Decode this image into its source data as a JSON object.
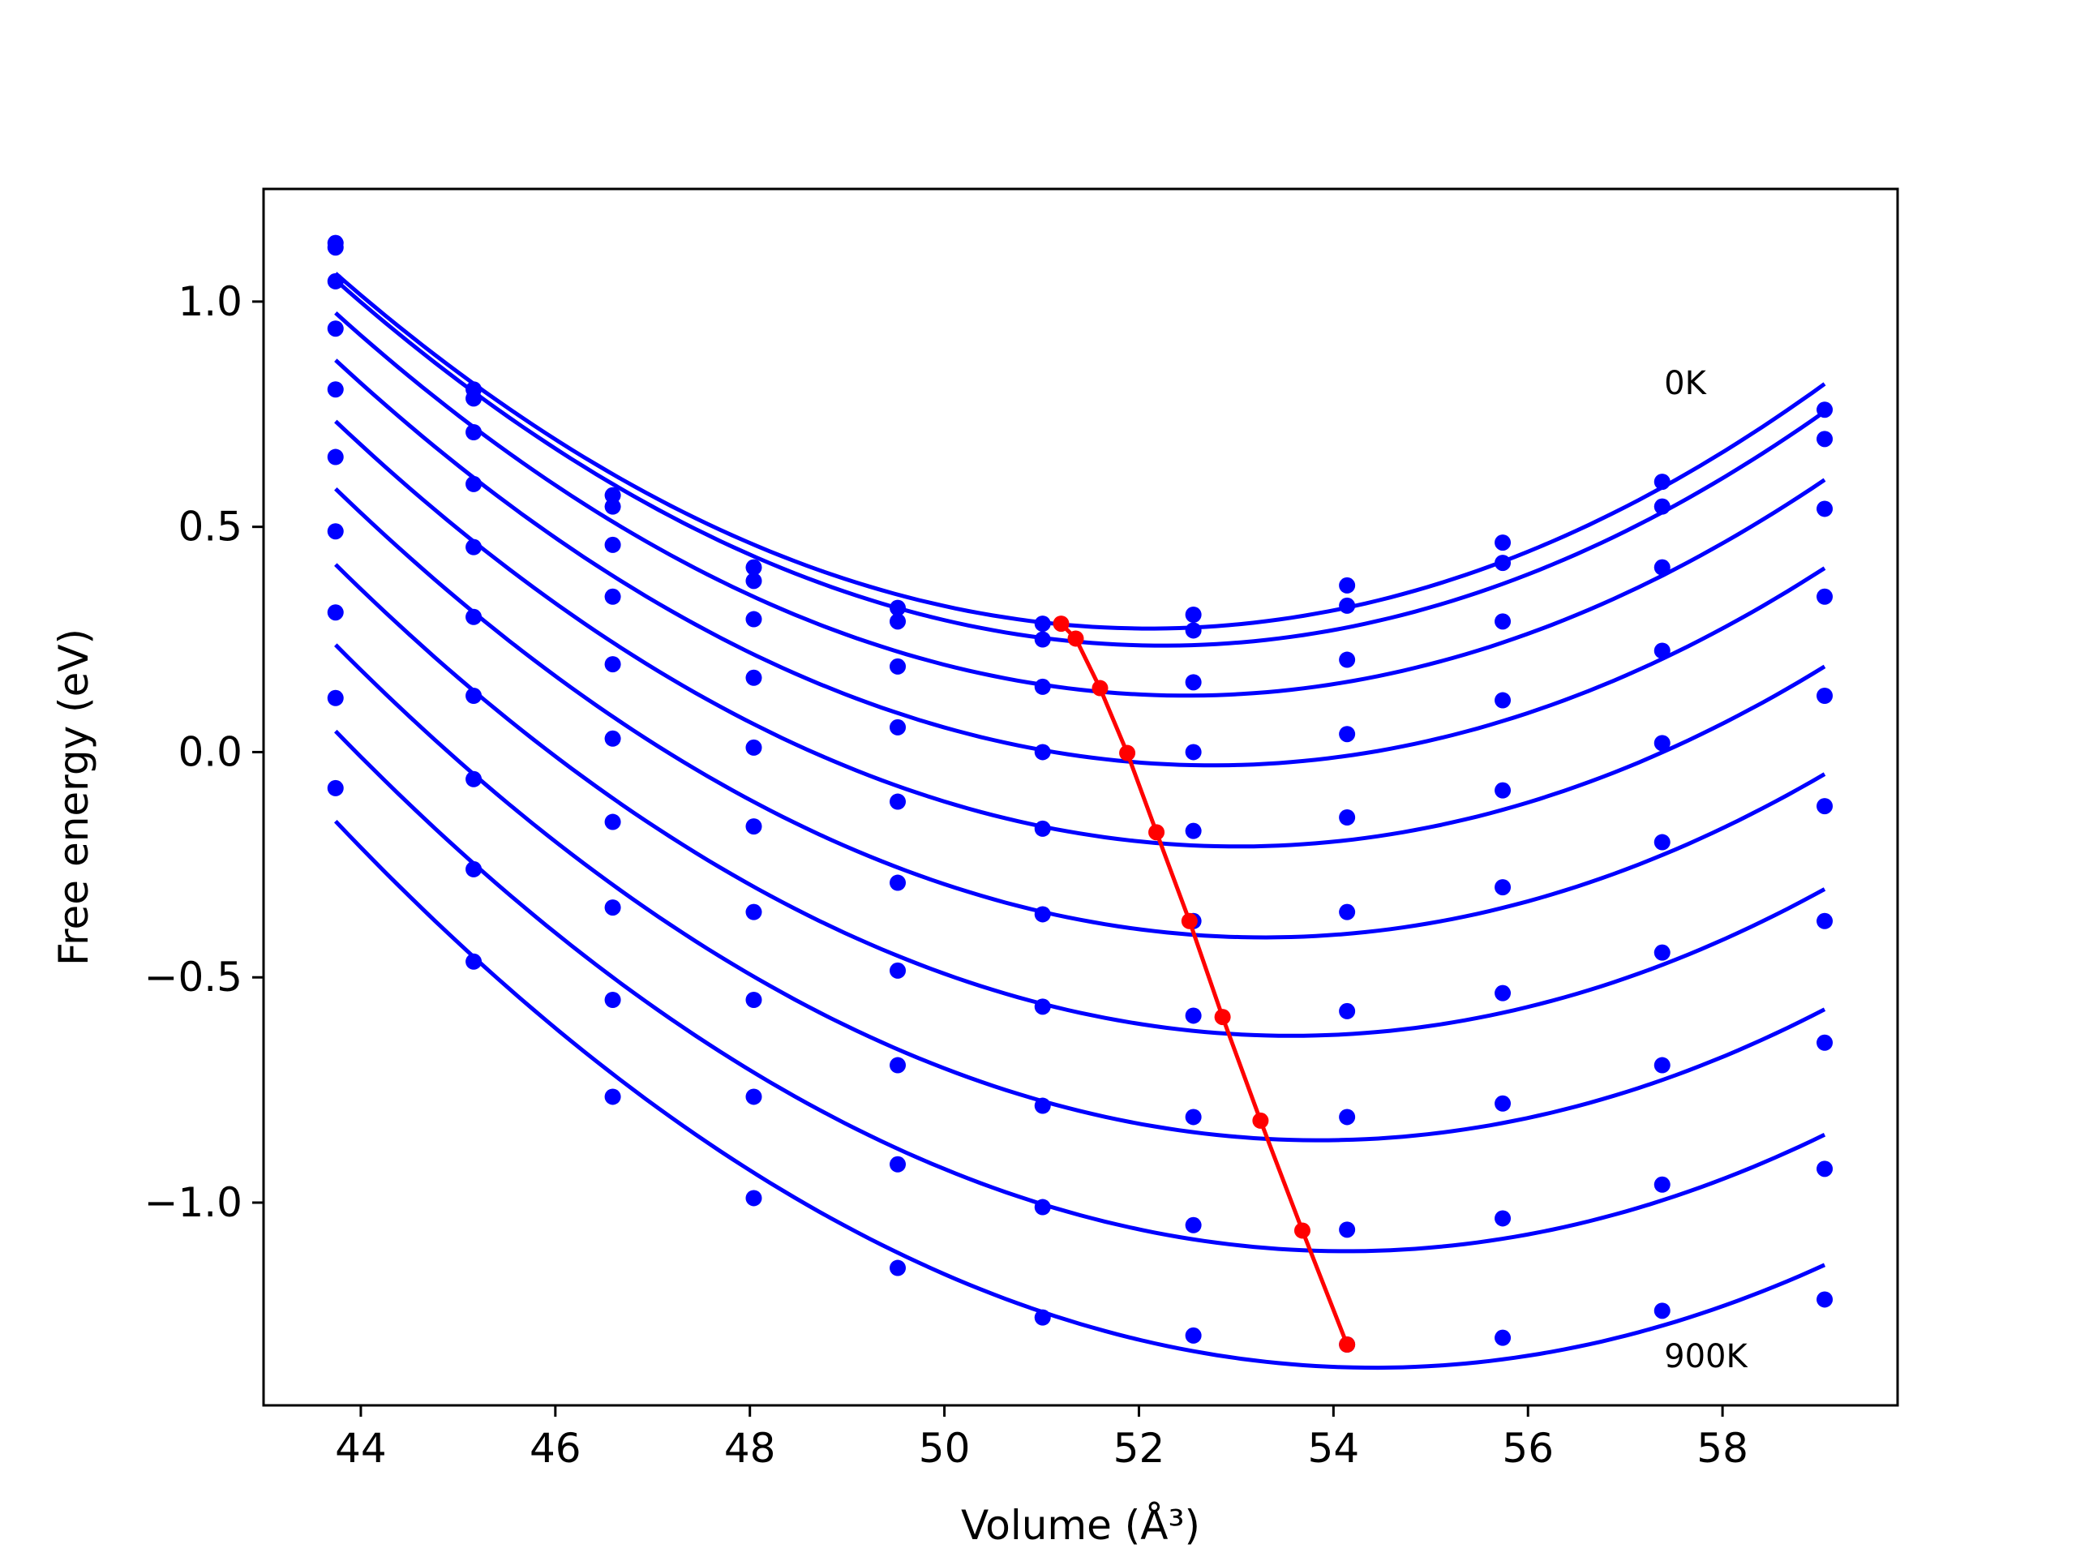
{
  "chart_data": {
    "type": "line",
    "xlabel": "Volume (Å³)",
    "ylabel": "Free energy (eV)",
    "xlim": [
      43.0,
      59.8
    ],
    "ylim": [
      -1.45,
      1.25
    ],
    "x_ticks": [
      44,
      46,
      48,
      50,
      52,
      54,
      56,
      58
    ],
    "y_ticks": [
      1.0,
      0.5,
      0.0,
      -0.5,
      -1.0
    ],
    "x_tick_labels": [
      "44",
      "46",
      "48",
      "50",
      "52",
      "54",
      "56",
      "58"
    ],
    "y_tick_labels": [
      "1.0",
      "0.5",
      "0.0",
      "−0.5",
      "−1.0"
    ],
    "grid": false,
    "annotations": [
      {
        "text": "0K",
        "x": 57.4,
        "y": 0.82
      },
      {
        "text": "900K",
        "x": 57.4,
        "y": -1.34
      }
    ],
    "x": [
      43.74,
      45.16,
      46.59,
      48.04,
      49.52,
      51.01,
      52.56,
      54.14,
      55.74,
      57.38,
      59.05
    ],
    "series": [
      {
        "points": [
          1.13,
          0.805,
          0.57,
          0.41,
          0.32,
          0.285,
          0.305,
          0.37,
          0.465,
          0.6,
          0.76
        ]
      },
      {
        "points": [
          1.12,
          0.785,
          0.545,
          0.38,
          0.29,
          0.25,
          0.27,
          0.325,
          0.42,
          0.545,
          0.695
        ]
      },
      {
        "points": [
          1.045,
          0.71,
          0.46,
          0.295,
          0.19,
          0.145,
          0.155,
          0.205,
          0.29,
          0.41,
          0.54
        ]
      },
      {
        "points": [
          0.94,
          0.595,
          0.345,
          0.165,
          0.055,
          0.0,
          0.0,
          0.04,
          0.115,
          0.225,
          0.345
        ]
      },
      {
        "points": [
          0.805,
          0.455,
          0.195,
          0.01,
          -0.11,
          -0.17,
          -0.175,
          -0.145,
          -0.085,
          0.02,
          0.125
        ]
      },
      {
        "points": [
          0.655,
          0.3,
          0.03,
          -0.165,
          -0.29,
          -0.36,
          -0.375,
          -0.355,
          -0.3,
          -0.2,
          -0.12
        ]
      },
      {
        "points": [
          0.49,
          0.125,
          -0.155,
          -0.355,
          -0.485,
          -0.565,
          -0.585,
          -0.575,
          -0.535,
          -0.445,
          -0.375
        ]
      },
      {
        "points": [
          0.31,
          -0.06,
          -0.345,
          -0.55,
          -0.695,
          -0.785,
          -0.81,
          -0.81,
          -0.78,
          -0.695,
          -0.645
        ]
      },
      {
        "points": [
          0.12,
          -0.26,
          -0.55,
          -0.765,
          -0.915,
          -1.01,
          -1.05,
          -1.06,
          -1.035,
          -0.96,
          -0.925
        ]
      },
      {
        "points": [
          -0.08,
          -0.465,
          -0.765,
          -0.99,
          -1.145,
          -1.255,
          -1.295,
          -1.315,
          -1.3,
          -1.24,
          -1.215
        ]
      }
    ],
    "minima": {
      "x": [
        51.2,
        51.35,
        51.6,
        51.88,
        52.18,
        52.52,
        52.86,
        53.25,
        53.68,
        54.14
      ],
      "y": [
        0.285,
        0.252,
        0.142,
        -0.002,
        -0.178,
        -0.375,
        -0.588,
        -0.818,
        -1.062,
        -1.315
      ]
    },
    "colors": {
      "curves": "#0000ff",
      "minima": "#ff0000",
      "axes": "#000000"
    }
  }
}
